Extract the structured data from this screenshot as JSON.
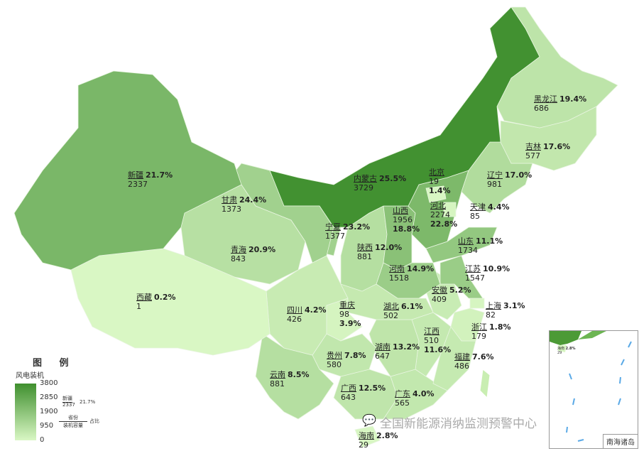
{
  "legend": {
    "title": "图 例",
    "subtitle": "风电装机",
    "ticks": [
      "3800",
      "2850",
      "1900",
      "950",
      "0"
    ],
    "range": [
      0,
      3800
    ],
    "example_name": "新疆",
    "example_value": "2337",
    "example_pct": "21.7%",
    "key_top": "省份",
    "key_bottom": "装机容量",
    "key_right": "占比",
    "color_low": "#d9f7c4",
    "color_high": "#3f8f2e"
  },
  "provinces": [
    {
      "name": "新疆",
      "capacity": "2337",
      "share": "21.7%"
    },
    {
      "name": "西藏",
      "capacity": "1",
      "share": "0.2%"
    },
    {
      "name": "青海",
      "capacity": "843",
      "share": "20.9%"
    },
    {
      "name": "甘肃",
      "capacity": "1373",
      "share": "24.4%"
    },
    {
      "name": "内蒙古",
      "capacity": "3729",
      "share": "25.5%"
    },
    {
      "name": "黑龙江",
      "capacity": "686",
      "share": "19.4%"
    },
    {
      "name": "吉林",
      "capacity": "577",
      "share": "17.6%"
    },
    {
      "name": "辽宁",
      "capacity": "981",
      "share": "17.0%"
    },
    {
      "name": "北京",
      "capacity": "19",
      "share": "1.4%"
    },
    {
      "name": "天津",
      "capacity": "85",
      "share": "4.4%"
    },
    {
      "name": "河北",
      "capacity": "2274",
      "share": "22.8%"
    },
    {
      "name": "山西",
      "capacity": "1956",
      "share": "18.8%"
    },
    {
      "name": "宁夏",
      "capacity": "1377",
      "share": "23.2%"
    },
    {
      "name": "陕西",
      "capacity": "881",
      "share": "12.0%"
    },
    {
      "name": "山东",
      "capacity": "1734",
      "share": "11.1%"
    },
    {
      "name": "河南",
      "capacity": "1518",
      "share": "14.9%"
    },
    {
      "name": "江苏",
      "capacity": "1547",
      "share": "10.9%"
    },
    {
      "name": "安徽",
      "capacity": "409",
      "share": "5.2%"
    },
    {
      "name": "上海",
      "capacity": "82",
      "share": "3.1%"
    },
    {
      "name": "浙江",
      "capacity": "179",
      "share": "1.8%"
    },
    {
      "name": "湖北",
      "capacity": "502",
      "share": "6.1%"
    },
    {
      "name": "重庆",
      "capacity": "98",
      "share": "3.9%"
    },
    {
      "name": "四川",
      "capacity": "426",
      "share": "4.2%"
    },
    {
      "name": "贵州",
      "capacity": "580",
      "share": "7.8%"
    },
    {
      "name": "云南",
      "capacity": "881",
      "share": "8.5%"
    },
    {
      "name": "湖南",
      "capacity": "647",
      "share": "13.2%"
    },
    {
      "name": "江西",
      "capacity": "510",
      "share": "11.6%"
    },
    {
      "name": "福建",
      "capacity": "486",
      "share": "7.6%"
    },
    {
      "name": "广西",
      "capacity": "643",
      "share": "12.5%"
    },
    {
      "name": "广东",
      "capacity": "565",
      "share": "4.0%"
    },
    {
      "name": "海南",
      "capacity": "29",
      "share": "2.8%"
    }
  ],
  "inset": {
    "caption": "南海诸岛",
    "hainan_name": "海南",
    "hainan_value": "29",
    "hainan_pct": "2.8%"
  },
  "watermark": "全国新能源消纳监测预警中心",
  "watermark_icon": "wechat-icon"
}
